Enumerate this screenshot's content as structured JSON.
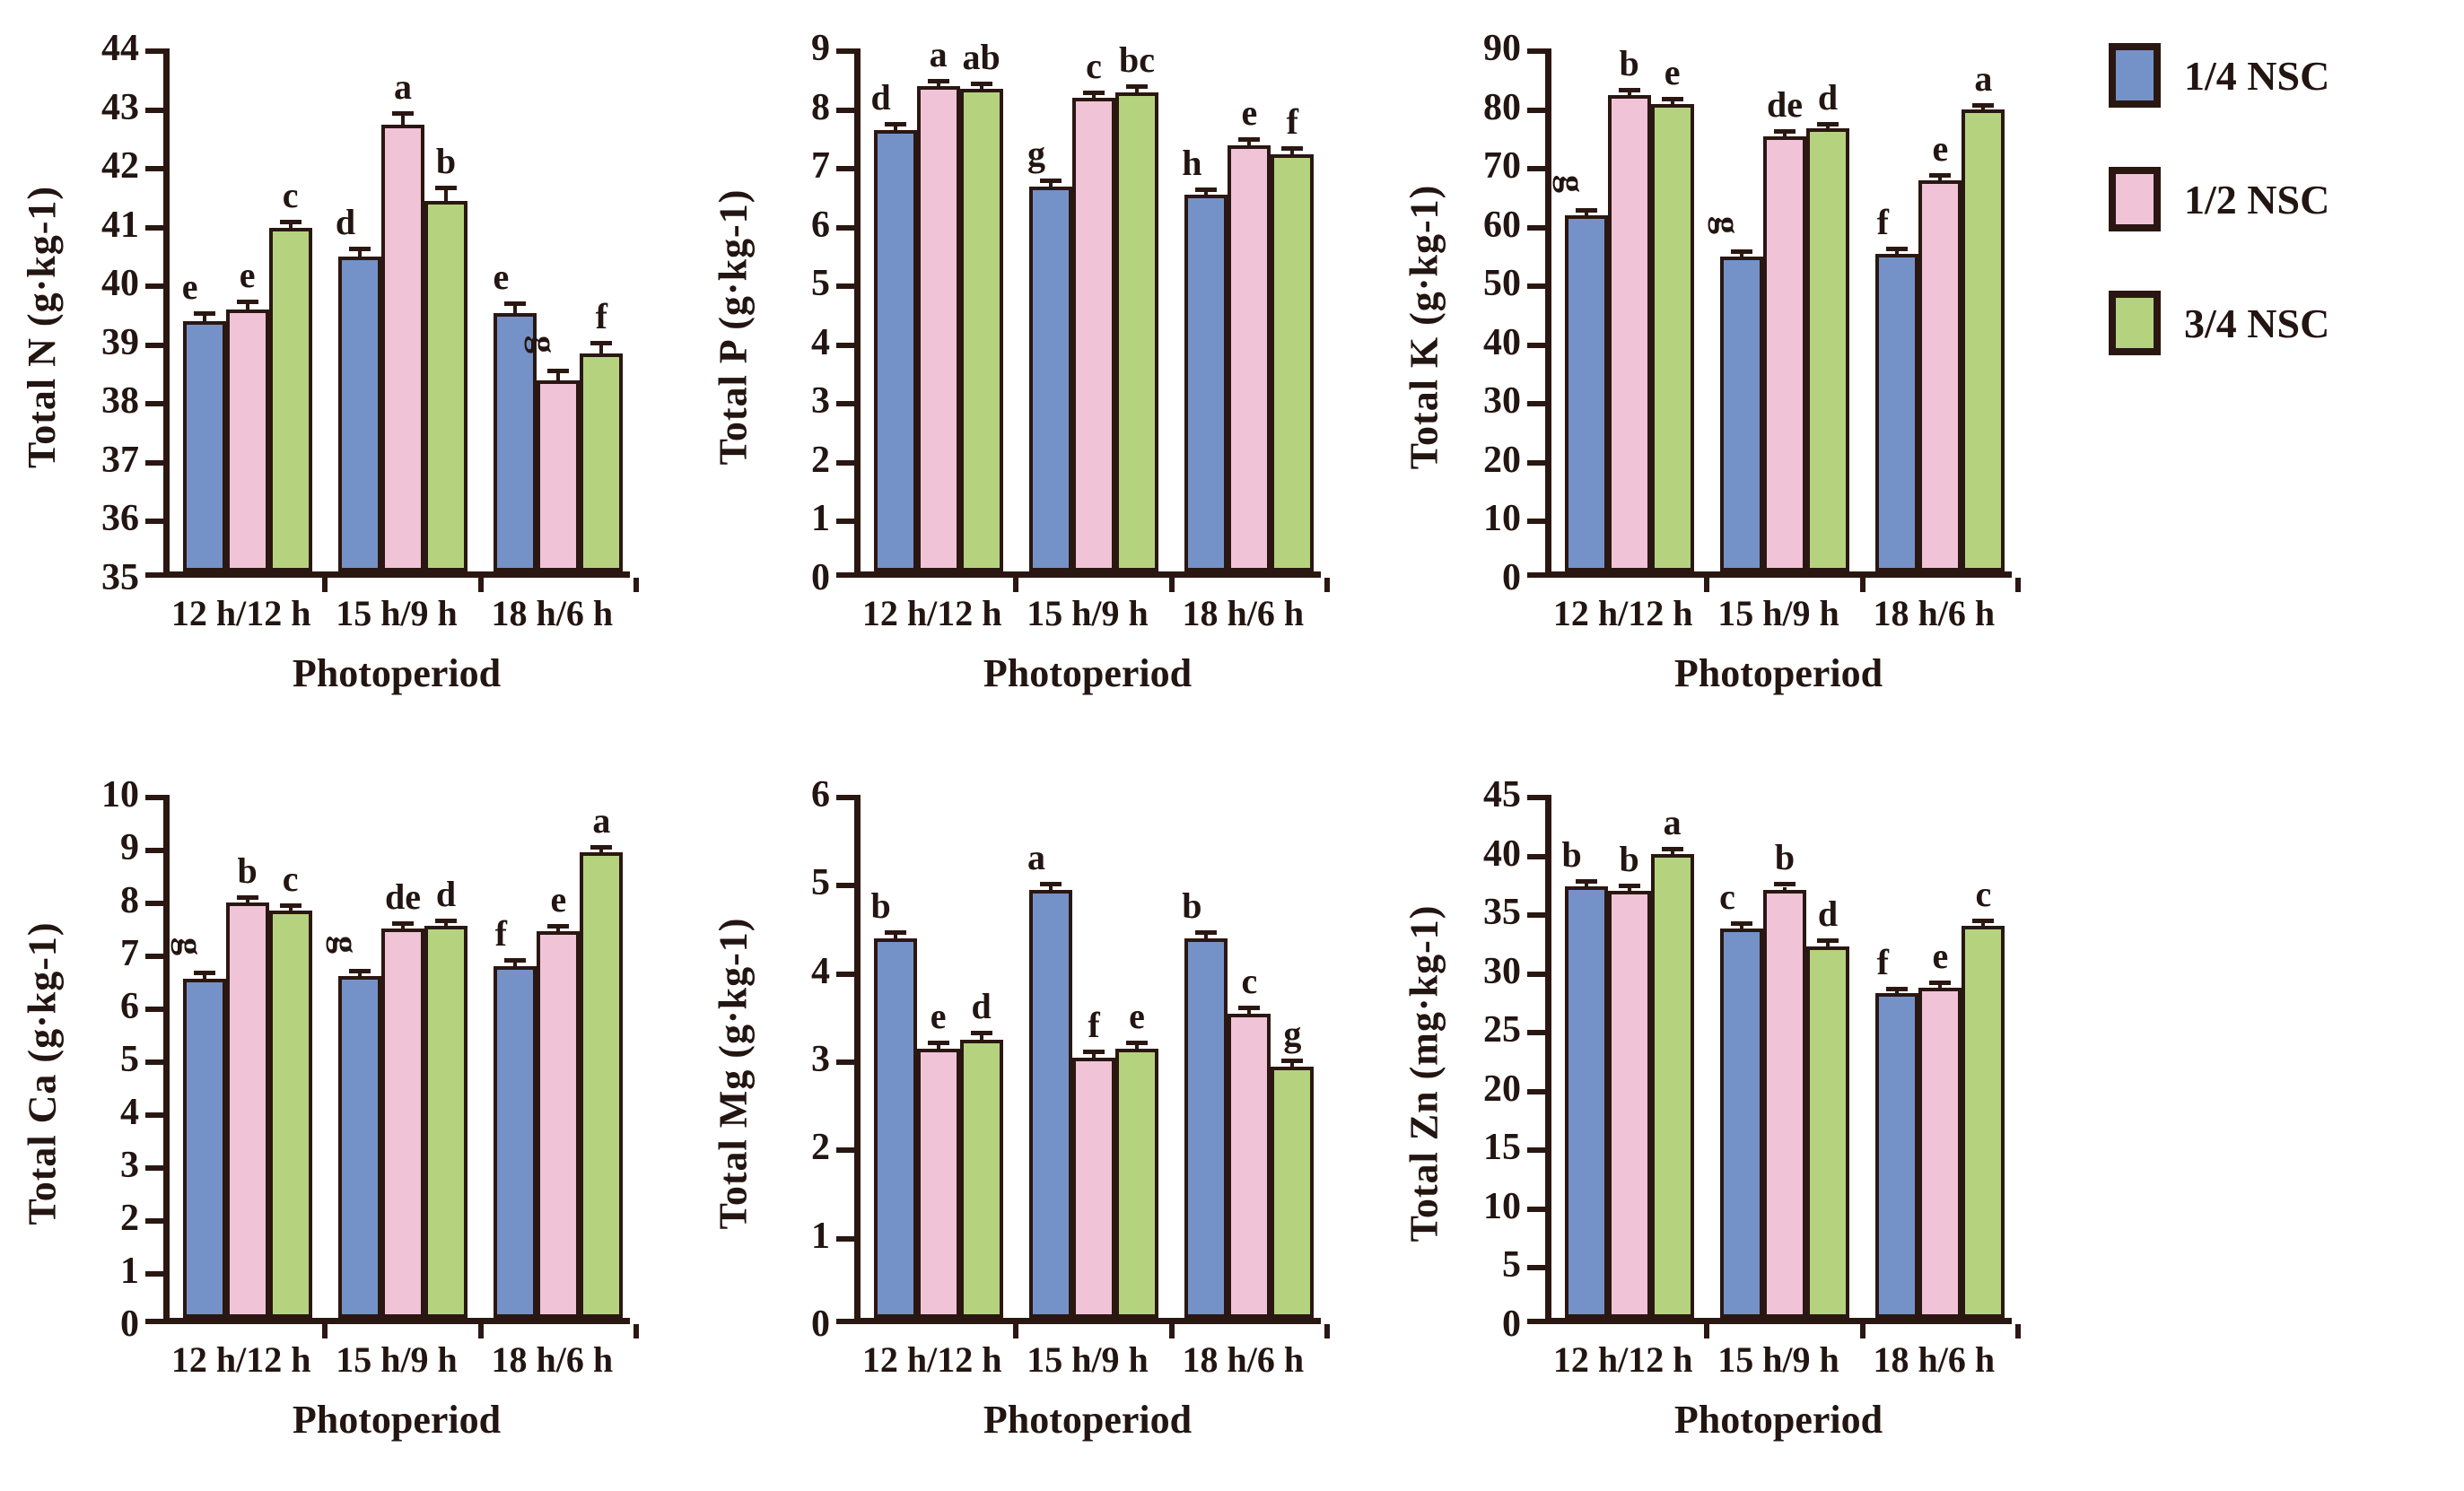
{
  "colors": {
    "axis": "#2b1712",
    "bar_border": "#2b1712",
    "blue": "#7492c7",
    "pink": "#f0c3d7",
    "green": "#b5d37e",
    "background": "#ffffff"
  },
  "legend": {
    "position": "top-right",
    "items": [
      {
        "label": "1/4 NSC",
        "color_key": "blue"
      },
      {
        "label": "1/2 NSC",
        "color_key": "pink"
      },
      {
        "label": "3/4 NSC",
        "color_key": "green"
      }
    ]
  },
  "chart_data": [
    {
      "type": "bar",
      "ylabel": "Total N (g·kg-1)",
      "xlabel": "Photoperiod",
      "categories": [
        "12 h/12 h",
        "15 h/9 h",
        "18 h/6 h"
      ],
      "ylim": [
        35,
        44
      ],
      "ytick_step": 1,
      "grid": false,
      "series": [
        {
          "name": "1/4 NSC",
          "color_key": "blue",
          "values": [
            39.25,
            40.35,
            39.4
          ],
          "errors": [
            0.1,
            0.1,
            0.12
          ],
          "letters": [
            "e",
            "d",
            "e"
          ],
          "rot": [
            0,
            0,
            0
          ]
        },
        {
          "name": "1/2 NSC",
          "color_key": "pink",
          "values": [
            39.45,
            42.6,
            38.25
          ],
          "errors": [
            0.1,
            0.15,
            0.12
          ],
          "letters": [
            "e",
            "a",
            "g"
          ],
          "rot": [
            0,
            0,
            1
          ]
        },
        {
          "name": "3/4 NSC",
          "color_key": "green",
          "values": [
            40.85,
            41.3,
            38.7
          ],
          "errors": [
            0.05,
            0.18,
            0.15
          ],
          "letters": [
            "c",
            "b",
            "f"
          ],
          "rot": [
            0,
            0,
            0
          ]
        }
      ]
    },
    {
      "type": "bar",
      "ylabel": "Total P (g·kg-1)",
      "xlabel": "Photoperiod",
      "categories": [
        "12 h/12 h",
        "15 h/9 h",
        "18 h/6 h"
      ],
      "ylim": [
        0,
        9
      ],
      "ytick_step": 1,
      "grid": false,
      "series": [
        {
          "name": "1/4 NSC",
          "color_key": "blue",
          "values": [
            7.5,
            6.55,
            6.4
          ],
          "errors": [
            0.06,
            0.06,
            0.05
          ],
          "letters": [
            "d",
            "g",
            "h"
          ],
          "rot": [
            0,
            0,
            0
          ]
        },
        {
          "name": "1/2 NSC",
          "color_key": "pink",
          "values": [
            8.25,
            8.05,
            7.25
          ],
          "errors": [
            0.05,
            0.05,
            0.05
          ],
          "letters": [
            "a",
            "c",
            "e"
          ],
          "rot": [
            0,
            0,
            0
          ]
        },
        {
          "name": "3/4 NSC",
          "color_key": "green",
          "values": [
            8.2,
            8.15,
            7.1
          ],
          "errors": [
            0.05,
            0.05,
            0.05
          ],
          "letters": [
            "ab",
            "bc",
            "f"
          ],
          "rot": [
            0,
            0,
            0
          ]
        }
      ]
    },
    {
      "type": "bar",
      "ylabel": "Total K (g·kg-1)",
      "xlabel": "Photoperiod",
      "categories": [
        "12 h/12 h",
        "15 h/9 h",
        "18 h/6 h"
      ],
      "ylim": [
        0,
        90
      ],
      "ytick_step": 10,
      "grid": false,
      "series": [
        {
          "name": "1/4 NSC",
          "color_key": "blue",
          "values": [
            60.5,
            53.5,
            54.0
          ],
          "errors": [
            0.5,
            0.5,
            0.5
          ],
          "letters": [
            "g",
            "g",
            "f"
          ],
          "rot": [
            1,
            1,
            0
          ]
        },
        {
          "name": "1/2 NSC",
          "color_key": "pink",
          "values": [
            81.0,
            74.0,
            66.5
          ],
          "errors": [
            0.5,
            0.4,
            0.4
          ],
          "letters": [
            "b",
            "de",
            "e"
          ],
          "rot": [
            0,
            0,
            0
          ]
        },
        {
          "name": "3/4 NSC",
          "color_key": "green",
          "values": [
            79.5,
            75.3,
            78.5
          ],
          "errors": [
            0.4,
            0.4,
            0.4
          ],
          "letters": [
            "e",
            "d",
            "a"
          ],
          "rot": [
            0,
            0,
            0
          ]
        }
      ]
    },
    {
      "type": "bar",
      "ylabel": "Total Ca (g·kg-1)",
      "xlabel": "Photoperiod",
      "categories": [
        "12 h/12 h",
        "15 h/9 h",
        "18 h/6 h"
      ],
      "ylim": [
        0,
        10
      ],
      "ytick_step": 1,
      "grid": false,
      "series": [
        {
          "name": "1/4 NSC",
          "color_key": "blue",
          "values": [
            6.4,
            6.45,
            6.65
          ],
          "errors": [
            0.07,
            0.06,
            0.06
          ],
          "letters": [
            "g",
            "g",
            "f"
          ],
          "rot": [
            1,
            1,
            0
          ]
        },
        {
          "name": "1/2 NSC",
          "color_key": "pink",
          "values": [
            7.85,
            7.35,
            7.3
          ],
          "errors": [
            0.05,
            0.05,
            0.05
          ],
          "letters": [
            "b",
            "de",
            "e"
          ],
          "rot": [
            0,
            0,
            0
          ]
        },
        {
          "name": "3/4 NSC",
          "color_key": "green",
          "values": [
            7.7,
            7.4,
            8.8
          ],
          "errors": [
            0.04,
            0.05,
            0.05
          ],
          "letters": [
            "c",
            "d",
            "a"
          ],
          "rot": [
            0,
            0,
            0
          ]
        }
      ]
    },
    {
      "type": "bar",
      "ylabel": "Total Mg (g·kg-1)",
      "xlabel": "Photoperiod",
      "categories": [
        "12 h/12 h",
        "15 h/9 h",
        "18 h/6 h"
      ],
      "ylim": [
        0,
        6
      ],
      "ytick_step": 1,
      "grid": false,
      "series": [
        {
          "name": "1/4 NSC",
          "color_key": "blue",
          "values": [
            4.3,
            4.85,
            4.3
          ],
          "errors": [
            0.04,
            0.04,
            0.04
          ],
          "letters": [
            "b",
            "a",
            "b"
          ],
          "rot": [
            0,
            0,
            0
          ]
        },
        {
          "name": "1/2 NSC",
          "color_key": "pink",
          "values": [
            3.05,
            2.95,
            3.45
          ],
          "errors": [
            0.04,
            0.04,
            0.04
          ],
          "letters": [
            "e",
            "f",
            "c"
          ],
          "rot": [
            0,
            0,
            0
          ]
        },
        {
          "name": "3/4 NSC",
          "color_key": "green",
          "values": [
            3.15,
            3.05,
            2.85
          ],
          "errors": [
            0.05,
            0.04,
            0.04
          ],
          "letters": [
            "d",
            "e",
            "g"
          ],
          "rot": [
            0,
            0,
            0
          ]
        }
      ]
    },
    {
      "type": "bar",
      "ylabel": "Total Zn (mg·kg-1)",
      "xlabel": "Photoperiod",
      "categories": [
        "12 h/12 h",
        "15 h/9 h",
        "18 h/6 h"
      ],
      "ylim": [
        0,
        45
      ],
      "ytick_step": 5,
      "grid": false,
      "series": [
        {
          "name": "1/4 NSC",
          "color_key": "blue",
          "values": [
            36.7,
            33.1,
            27.6
          ],
          "errors": [
            0.25,
            0.25,
            0.2
          ],
          "letters": [
            "b",
            "c",
            "f"
          ],
          "rot": [
            0,
            0,
            0
          ]
        },
        {
          "name": "1/2 NSC",
          "color_key": "pink",
          "values": [
            36.3,
            36.4,
            28.1
          ],
          "errors": [
            0.2,
            0.25,
            0.2
          ],
          "letters": [
            "b",
            "b",
            "e"
          ],
          "rot": [
            0,
            0,
            0
          ]
        },
        {
          "name": "3/4 NSC",
          "color_key": "green",
          "values": [
            39.4,
            31.6,
            33.3
          ],
          "errors": [
            0.3,
            0.25,
            0.25
          ],
          "letters": [
            "a",
            "d",
            "c"
          ],
          "rot": [
            0,
            0,
            0
          ]
        }
      ]
    }
  ]
}
